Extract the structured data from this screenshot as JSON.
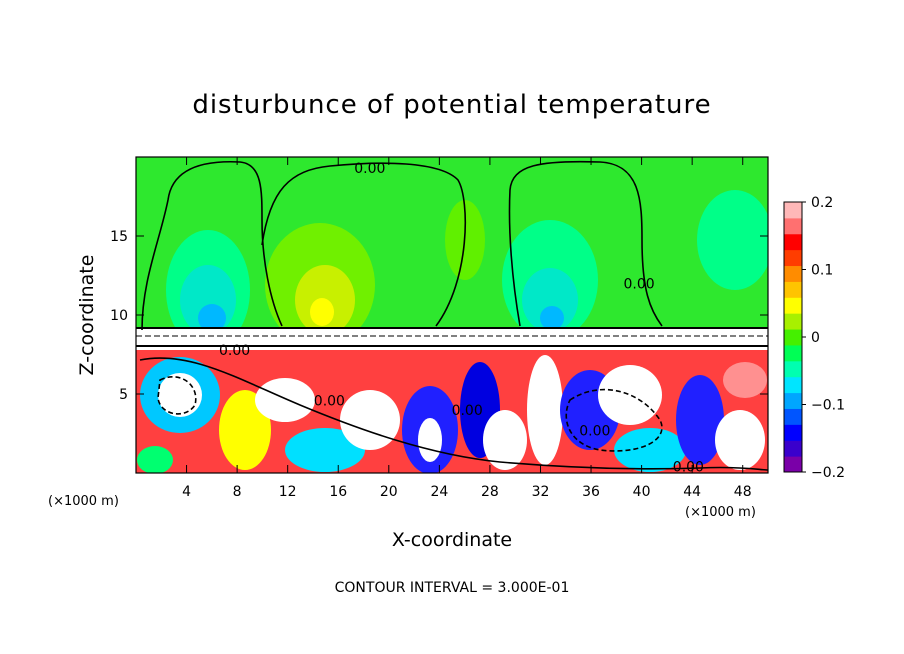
{
  "chart_data": {
    "type": "heatmap",
    "title": "disturbunce of potential temperature",
    "xlabel": "X-coordinate",
    "ylabel": "Z-coordinate",
    "x_unit_label_left": "(×1000 m)",
    "x_unit_label_right": "(×1000 m)",
    "xlim": [
      0,
      50
    ],
    "ylim": [
      0,
      20
    ],
    "x_ticks": [
      4,
      8,
      12,
      16,
      20,
      24,
      28,
      32,
      36,
      40,
      44,
      48
    ],
    "y_ticks": [
      5,
      10,
      15
    ],
    "colorbar": {
      "range": [
        -0.2,
        0.2
      ],
      "ticks": [
        {
          "value": 0.2,
          "label": "0.2"
        },
        {
          "value": 0.1,
          "label": "0.1"
        },
        {
          "value": 0,
          "label": "0"
        },
        {
          "value": -0.1,
          "label": "−0.1"
        },
        {
          "value": -0.2,
          "label": "−0.2"
        }
      ],
      "colors": [
        "#7a00a8",
        "#3a00cc",
        "#0000ff",
        "#0055ff",
        "#00a6ff",
        "#00e5ff",
        "#00ffb0",
        "#00ff55",
        "#45f000",
        "#a8f000",
        "#ffff00",
        "#ffc400",
        "#ff8c00",
        "#ff3d00",
        "#ff0000",
        "#ff7070",
        "#ffb8b8"
      ]
    },
    "contour_labels": [
      {
        "text": "0.00",
        "x": 18.5,
        "z": 19.3
      },
      {
        "text": "0.00",
        "x": 39.8,
        "z": 12.0
      },
      {
        "text": "0.00",
        "x": 7.8,
        "z": 7.8
      },
      {
        "text": "0.00",
        "x": 15.3,
        "z": 4.6
      },
      {
        "text": "0.00",
        "x": 26.2,
        "z": 4.0
      },
      {
        "text": "0.00",
        "x": 36.3,
        "z": 2.7
      },
      {
        "text": "0.00",
        "x": 43.7,
        "z": 0.4
      }
    ],
    "contour_interval_text": "CONTOUR INTERVAL = 3.000E-01"
  }
}
